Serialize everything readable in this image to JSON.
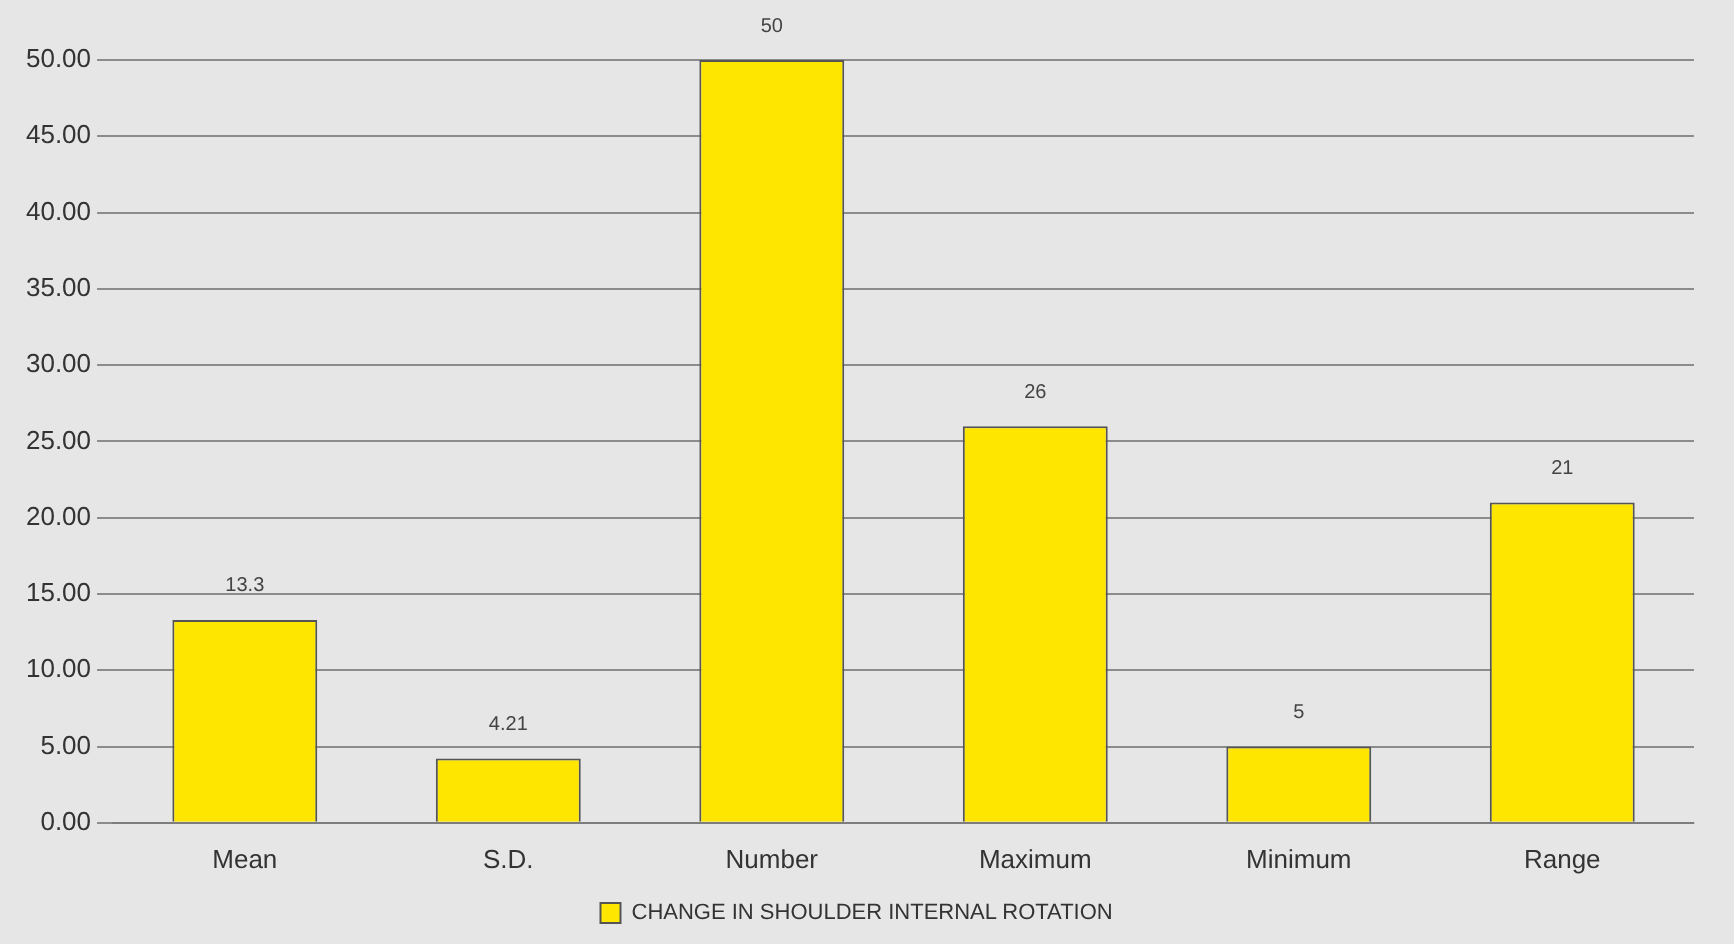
{
  "chart_data": {
    "type": "bar",
    "categories": [
      "Mean",
      "S.D.",
      "Number",
      "Maximum",
      "Minimum",
      "Range"
    ],
    "series": [
      {
        "name": "CHANGE IN SHOULDER INTERNAL ROTATION",
        "color": "#ffe600",
        "values": [
          13.3,
          4.21,
          50,
          26,
          5,
          21
        ]
      }
    ],
    "ylim": [
      0,
      50
    ],
    "yticks": [
      {
        "value": 0,
        "label": "0.00"
      },
      {
        "value": 5,
        "label": "5.00"
      },
      {
        "value": 10,
        "label": "10.00"
      },
      {
        "value": 15,
        "label": "15.00"
      },
      {
        "value": 20,
        "label": "20.00"
      },
      {
        "value": 25,
        "label": "25.00"
      },
      {
        "value": 30,
        "label": "30.00"
      },
      {
        "value": 35,
        "label": "35.00"
      },
      {
        "value": 40,
        "label": "40.00"
      },
      {
        "value": 45,
        "label": "45.00"
      },
      {
        "value": 50,
        "label": "50.00"
      }
    ],
    "grid": "y",
    "legend": "bottom",
    "data_labels": true
  }
}
